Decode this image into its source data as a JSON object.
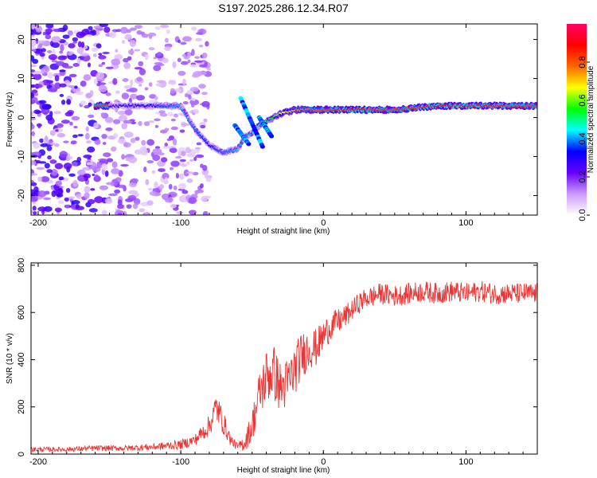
{
  "title": "S197.2025.286.12.34.R07",
  "chart_data": [
    {
      "type": "heatmap",
      "xlabel": "Height of straight line (km)",
      "ylabel": "Frequency (Hz)",
      "xlim": [
        -205,
        150
      ],
      "ylim": [
        -25,
        24
      ],
      "xticks": [
        -200,
        -100,
        0,
        100
      ],
      "yticks": [
        -20,
        -10,
        0,
        10,
        20
      ],
      "xtick_labels": [
        "-200",
        "-100",
        "0",
        "100"
      ],
      "ytick_labels": [
        "-20",
        "-10",
        "0",
        "10",
        "20"
      ],
      "colorbar": {
        "label": "Normalized spectral amplitude",
        "range": [
          0.0,
          1.0
        ],
        "ticks": [
          0.0,
          0.2,
          0.4,
          0.6,
          0.8
        ],
        "tick_labels": [
          "0.0",
          "0.2",
          "0.4",
          "0.6",
          "0.8"
        ],
        "colors": [
          "#ffffff",
          "#cc99ff",
          "#6600ff",
          "#0000ff",
          "#00ffff",
          "#00ff00",
          "#ffff00",
          "#ff6600",
          "#ff0000",
          "#ff0066"
        ]
      },
      "ridge": {
        "description_points_x": [
          -150,
          -120,
          -100,
          -90,
          -80,
          -70,
          -60,
          -55,
          -50,
          -45,
          -40,
          -35,
          -30,
          -20,
          -10,
          0,
          20,
          50,
          80,
          100,
          150
        ],
        "description_points_y": [
          3,
          3,
          3,
          -3,
          -7,
          -9,
          -8,
          -5,
          -4,
          -2,
          -1,
          0,
          1,
          2,
          2,
          2,
          2,
          2,
          3,
          3,
          3
        ],
        "peak_amplitude": [
          0.3,
          0.35,
          0.45,
          0.4,
          0.35,
          0.4,
          0.45,
          0.4,
          0.45,
          0.5,
          0.55,
          0.6,
          0.7,
          0.8,
          0.85,
          0.9,
          0.95,
          0.9,
          0.95,
          0.95,
          0.9
        ]
      }
    },
    {
      "type": "line",
      "xlabel": "Height of straight line (km)",
      "ylabel": "SNR (10 * v/v)",
      "xlim": [
        -205,
        150
      ],
      "ylim": [
        0,
        810
      ],
      "xticks": [
        -200,
        -100,
        0,
        100
      ],
      "yticks": [
        0,
        200,
        400,
        600,
        800
      ],
      "xtick_labels": [
        "-200",
        "-100",
        "0",
        "100"
      ],
      "ytick_labels": [
        "0",
        "200",
        "400",
        "600",
        "800"
      ],
      "series": [
        {
          "name": "SNR",
          "color": "#ee3333",
          "x": [
            -205,
            -180,
            -160,
            -140,
            -120,
            -100,
            -90,
            -80,
            -75,
            -70,
            -65,
            -60,
            -55,
            -50,
            -45,
            -40,
            -35,
            -30,
            -25,
            -20,
            -15,
            -10,
            -5,
            0,
            5,
            10,
            15,
            20,
            25,
            30,
            40,
            50,
            60,
            70,
            80,
            90,
            100,
            110,
            120,
            130,
            140,
            150
          ],
          "values": [
            20,
            20,
            25,
            25,
            30,
            40,
            60,
            120,
            200,
            130,
            60,
            30,
            50,
            120,
            250,
            330,
            350,
            280,
            300,
            360,
            420,
            450,
            450,
            500,
            540,
            560,
            580,
            610,
            640,
            660,
            680,
            670,
            680,
            690,
            680,
            690,
            680,
            690,
            680,
            680,
            680,
            680
          ],
          "noise": [
            10,
            10,
            12,
            12,
            15,
            20,
            25,
            45,
            70,
            50,
            25,
            15,
            40,
            70,
            100,
            120,
            120,
            110,
            110,
            110,
            100,
            90,
            80,
            70,
            60,
            55,
            50,
            45,
            45,
            45,
            45,
            45,
            45,
            45,
            45,
            45,
            45,
            45,
            45,
            45,
            45,
            45
          ]
        }
      ]
    }
  ]
}
